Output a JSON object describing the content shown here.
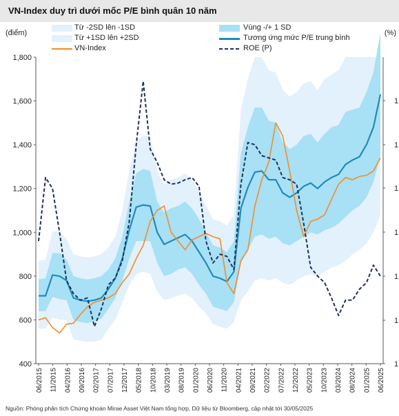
{
  "title": "VN-Index duy trì dưới mốc P/E bình quân 10 năm",
  "left_unit": "(điểm)",
  "right_unit": "(%)",
  "source": "Nguồn: Phòng phân tích Chứng khoán Mirae Asset Việt Nam tổng hợp,  Dữ liệu từ Bloomberg, cập nhật tới 30/05/2025",
  "colors": {
    "band_outer": "#e2f1fb",
    "band_inner": "#a8e0f5",
    "mid_line": "#1e8bb8",
    "vnindex": "#f28c28",
    "roe": "#1c2f5e"
  },
  "legend": [
    {
      "key": "band_lower",
      "label": "Từ -2SD lên -1SD",
      "style": "swatch-light"
    },
    {
      "key": "band_inner",
      "label": "Vùng -/+ 1 SD",
      "style": "swatch-mid"
    },
    {
      "key": "band_upper",
      "label": "Từ +1SD lên +2SD",
      "style": "swatch-light"
    },
    {
      "key": "mid",
      "label": "Tương ứng mức P/E trung bình",
      "style": "line-blue"
    },
    {
      "key": "vnindex",
      "label": "VN-Index",
      "style": "line-orange"
    },
    {
      "key": "roe",
      "label": "ROE (P)",
      "style": "dash-navy"
    }
  ],
  "chart_data": {
    "type": "line",
    "ylim": [
      400,
      1800
    ],
    "y_ticks": [
      "400",
      "600",
      "800",
      "1,000",
      "1,200",
      "1,400",
      "1,600",
      "1,800"
    ],
    "y2_ticks_visible": [
      "1",
      "1",
      "1",
      "1",
      "1",
      "1"
    ],
    "x_tick_labels": [
      "06/2015",
      "11/2015",
      "04/2016",
      "09/2016",
      "02/2017",
      "07/2017",
      "12/2017",
      "05/2018",
      "10/2018",
      "03/2019",
      "08/2019",
      "01/2020",
      "06/2020",
      "11/2020",
      "04/2021",
      "09/2021",
      "02/2022",
      "07/2022",
      "12/2022",
      "05/2023",
      "10/2023",
      "03/2024",
      "08/2024",
      "01/2025",
      "06/2025"
    ],
    "series": [
      {
        "name": "Tương ứng mức P/E trung bình",
        "values": [
          710,
          710,
          805,
          800,
          780,
          700,
          690,
          685,
          690,
          700,
          740,
          790,
          880,
          1010,
          1115,
          1125,
          1120,
          1000,
          945,
          960,
          975,
          990,
          960,
          910,
          860,
          800,
          790,
          775,
          820,
          1110,
          1205,
          1275,
          1280,
          1240,
          1240,
          1180,
          1160,
          1180,
          1210,
          1225,
          1200,
          1230,
          1250,
          1265,
          1310,
          1330,
          1345,
          1400,
          1480,
          1630
        ]
      },
      {
        "name": "VN-Index",
        "values": [
          600,
          610,
          565,
          540,
          580,
          585,
          625,
          660,
          680,
          690,
          700,
          720,
          770,
          810,
          880,
          940,
          1050,
          1100,
          1120,
          1000,
          960,
          920,
          965,
          980,
          995,
          980,
          970,
          770,
          720,
          870,
          920,
          1120,
          1240,
          1320,
          1500,
          1440,
          1280,
          1100,
          980,
          1050,
          1060,
          1080,
          1150,
          1220,
          1250,
          1240,
          1255,
          1260,
          1280,
          1340
        ]
      },
      {
        "name": "ROE (P)",
        "values": [
          960,
          1250,
          1200,
          1000,
          780,
          720,
          690,
          700,
          570,
          650,
          760,
          790,
          870,
          1050,
          1400,
          1690,
          1380,
          1320,
          1240,
          1220,
          1225,
          1240,
          1250,
          1210,
          960,
          860,
          900,
          890,
          830,
          1220,
          1410,
          1400,
          1350,
          1340,
          1330,
          1250,
          1240,
          1220,
          1040,
          840,
          800,
          770,
          700,
          620,
          690,
          690,
          740,
          770,
          850,
          800
        ]
      },
      {
        "name": "Vùng -/+ 1 SD (lower)",
        "values": [
          640,
          640,
          705,
          695,
          690,
          600,
          590,
          585,
          595,
          605,
          650,
          700,
          780,
          880,
          960,
          960,
          960,
          860,
          800,
          810,
          830,
          840,
          810,
          760,
          720,
          660,
          650,
          640,
          680,
          860,
          920,
          980,
          990,
          970,
          980,
          950,
          940,
          960,
          980,
          1000,
          990,
          1010,
          1020,
          1040,
          1070,
          1100,
          1120,
          1160,
          1230,
          1350
        ]
      },
      {
        "name": "Vùng -/+ 1 SD (upper)",
        "values": [
          785,
          790,
          905,
          905,
          875,
          800,
          790,
          785,
          790,
          800,
          830,
          880,
          980,
          1140,
          1270,
          1290,
          1280,
          1140,
          1090,
          1110,
          1120,
          1140,
          1110,
          1060,
          1000,
          940,
          930,
          910,
          960,
          1360,
          1480,
          1570,
          1570,
          1510,
          1500,
          1410,
          1380,
          1400,
          1440,
          1450,
          1410,
          1450,
          1480,
          1490,
          1550,
          1560,
          1570,
          1640,
          1730,
          1910
        ]
      },
      {
        "name": "Từ -2SD lên -1SD (lower)",
        "values": [
          560,
          560,
          610,
          600,
          600,
          510,
          505,
          500,
          500,
          510,
          560,
          600,
          680,
          760,
          810,
          820,
          810,
          730,
          690,
          700,
          710,
          720,
          700,
          660,
          630,
          580,
          570,
          560,
          590,
          690,
          730,
          780,
          790,
          780,
          790,
          770,
          760,
          780,
          800,
          810,
          800,
          820,
          840,
          850,
          870,
          900,
          920,
          950,
          1000,
          1080
        ]
      },
      {
        "name": "Từ +1SD lên +2SD (upper)",
        "values": [
          870,
          875,
          1005,
          1000,
          970,
          900,
          890,
          885,
          890,
          900,
          930,
          980,
          1100,
          1280,
          1420,
          1440,
          1440,
          1280,
          1220,
          1240,
          1250,
          1270,
          1240,
          1190,
          1120,
          1060,
          1050,
          1030,
          1080,
          1560,
          1700,
          1800,
          1800,
          1740,
          1730,
          1650,
          1620,
          1640,
          1680,
          1690,
          1650,
          1700,
          1720,
          1740,
          1800,
          1800,
          1800,
          1800,
          1800,
          1800
        ]
      }
    ]
  }
}
